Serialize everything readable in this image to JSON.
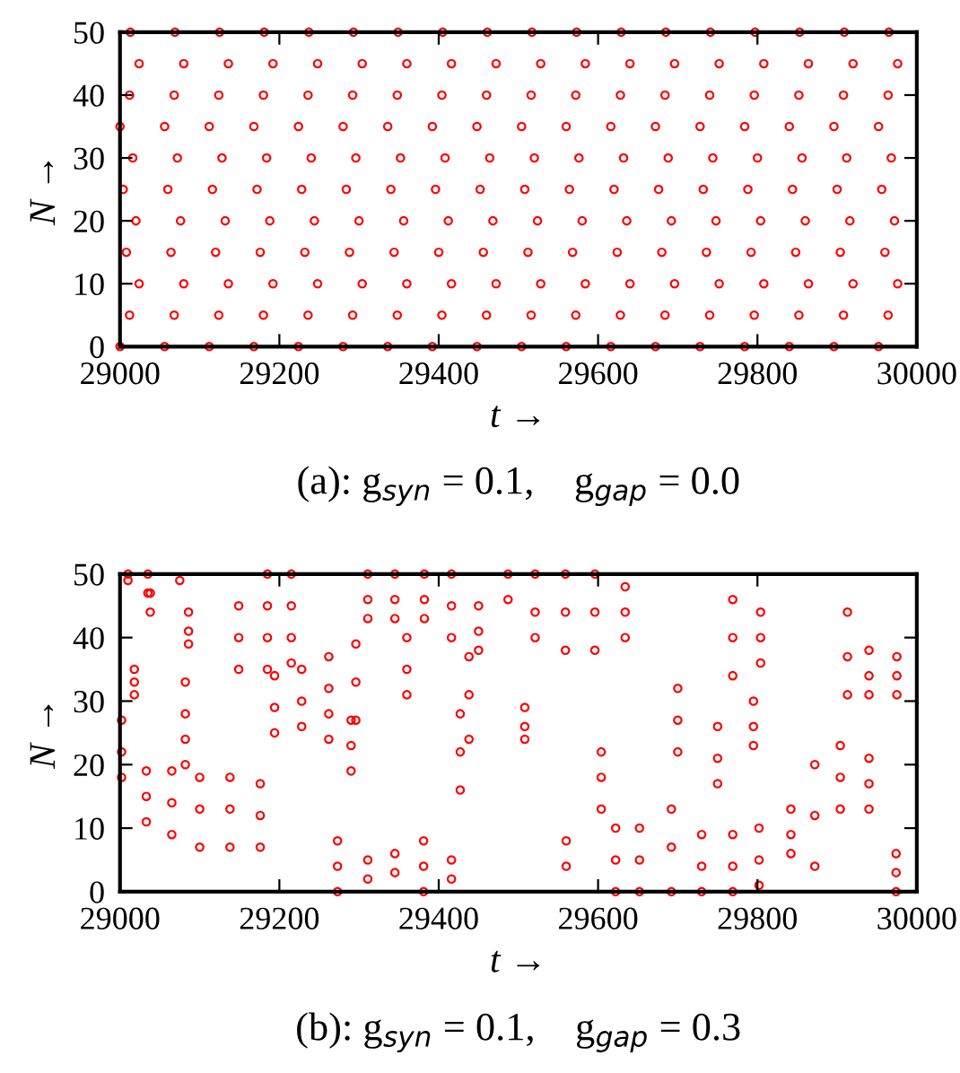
{
  "chart_data": [
    {
      "type": "scatter",
      "xlabel": "t →",
      "ylabel": "N →",
      "annotations": [
        "(a): g$_{syn}$ = 0.1,    g$_{gap}$ = 0.0"
      ],
      "xlim": [
        29000,
        30000
      ],
      "ylim": [
        0,
        50
      ],
      "xticks": [
        29000,
        29200,
        29400,
        29600,
        29800,
        30000
      ],
      "yticks": [
        0,
        10,
        20,
        30,
        40,
        50
      ],
      "marker": "circle",
      "series": [
        {
          "color": "#ff0000",
          "x": [
            29000,
            29056,
            29112,
            29168,
            29224,
            29280,
            29336,
            29392,
            29448,
            29504,
            29560,
            29616,
            29672,
            29728,
            29784,
            29840,
            29896,
            29952,
            29012,
            29068,
            29124,
            29180,
            29236,
            29292,
            29348,
            29404,
            29460,
            29516,
            29572,
            29628,
            29684,
            29740,
            29796,
            29852,
            29908,
            29964,
            29024,
            29080,
            29136,
            29192,
            29248,
            29304,
            29360,
            29416,
            29472,
            29528,
            29584,
            29640,
            29696,
            29752,
            29808,
            29864,
            29920,
            29976,
            29008,
            29064,
            29120,
            29176,
            29232,
            29288,
            29344,
            29400,
            29456,
            29512,
            29568,
            29624,
            29680,
            29736,
            29792,
            29848,
            29904,
            29960,
            29020,
            29076,
            29132,
            29188,
            29244,
            29300,
            29356,
            29412,
            29468,
            29524,
            29580,
            29636,
            29692,
            29748,
            29804,
            29860,
            29916,
            29972,
            29004,
            29060,
            29116,
            29172,
            29228,
            29284,
            29340,
            29396,
            29452,
            29508,
            29564,
            29620,
            29676,
            29732,
            29788,
            29844,
            29900,
            29956,
            29016,
            29072,
            29128,
            29184,
            29240,
            29296,
            29352,
            29408,
            29464,
            29520,
            29576,
            29632,
            29688,
            29744,
            29800,
            29856,
            29912,
            29968,
            29000,
            29056,
            29112,
            29168,
            29224,
            29280,
            29336,
            29392,
            29448,
            29504,
            29560,
            29616,
            29672,
            29728,
            29784,
            29840,
            29896,
            29952,
            29012,
            29068,
            29124,
            29180,
            29236,
            29292,
            29348,
            29404,
            29460,
            29516,
            29572,
            29628,
            29684,
            29740,
            29796,
            29852,
            29908,
            29964,
            29024,
            29080,
            29136,
            29192,
            29248,
            29304,
            29360,
            29416,
            29472,
            29528,
            29584,
            29640,
            29696,
            29752,
            29808,
            29864,
            29920,
            29976,
            29013,
            29069,
            29125,
            29181,
            29237,
            29293,
            29349,
            29405,
            29461,
            29517,
            29573,
            29629,
            29685,
            29741,
            29797,
            29853,
            29909,
            29965
          ],
          "values": [
            0,
            0,
            0,
            0,
            0,
            0,
            0,
            0,
            0,
            0,
            0,
            0,
            0,
            0,
            0,
            0,
            0,
            0,
            5,
            5,
            5,
            5,
            5,
            5,
            5,
            5,
            5,
            5,
            5,
            5,
            5,
            5,
            5,
            5,
            5,
            5,
            10,
            10,
            10,
            10,
            10,
            10,
            10,
            10,
            10,
            10,
            10,
            10,
            10,
            10,
            10,
            10,
            10,
            10,
            15,
            15,
            15,
            15,
            15,
            15,
            15,
            15,
            15,
            15,
            15,
            15,
            15,
            15,
            15,
            15,
            15,
            15,
            20,
            20,
            20,
            20,
            20,
            20,
            20,
            20,
            20,
            20,
            20,
            20,
            20,
            20,
            20,
            20,
            20,
            20,
            25,
            25,
            25,
            25,
            25,
            25,
            25,
            25,
            25,
            25,
            25,
            25,
            25,
            25,
            25,
            25,
            25,
            25,
            30,
            30,
            30,
            30,
            30,
            30,
            30,
            30,
            30,
            30,
            30,
            30,
            30,
            30,
            30,
            30,
            30,
            30,
            35,
            35,
            35,
            35,
            35,
            35,
            35,
            35,
            35,
            35,
            35,
            35,
            35,
            35,
            35,
            35,
            35,
            35,
            40,
            40,
            40,
            40,
            40,
            40,
            40,
            40,
            40,
            40,
            40,
            40,
            40,
            40,
            40,
            40,
            40,
            40,
            45,
            45,
            45,
            45,
            45,
            45,
            45,
            45,
            45,
            45,
            45,
            45,
            45,
            45,
            45,
            45,
            45,
            45,
            50,
            50,
            50,
            50,
            50,
            50,
            50,
            50,
            50,
            50,
            50,
            50,
            50,
            50,
            50,
            50,
            50,
            50
          ]
        }
      ]
    },
    {
      "type": "scatter",
      "xlabel": "t →",
      "ylabel": "N →",
      "annotations": [
        "(b): g$_{syn}$ = 0.1,    g$_{gap}$ = 0.3"
      ],
      "xlim": [
        29000,
        30000
      ],
      "ylim": [
        0,
        50
      ],
      "xticks": [
        29000,
        29200,
        29400,
        29600,
        29800,
        30000
      ],
      "yticks": [
        0,
        10,
        20,
        30,
        40,
        50
      ],
      "marker": "circle",
      "series": [
        {
          "color": "#ff0000",
          "x": [
            29185,
            29185,
            29185,
            29185,
            29215,
            29215,
            29215,
            29215,
            29149,
            29149,
            29149,
            29082,
            29082,
            29082,
            29082,
            29194,
            29194,
            29194,
            29228,
            29228,
            29228,
            29262,
            29262,
            29262,
            29262,
            29296,
            29296,
            29296,
            29311,
            29311,
            29311,
            29345,
            29345,
            29345,
            29382,
            29382,
            29382,
            29416,
            29416,
            29416,
            29360,
            29360,
            29360,
            29033,
            29033,
            29033,
            29065,
            29065,
            29065,
            29100,
            29100,
            29100,
            29138,
            29138,
            29138,
            29176,
            29176,
            29176,
            29290,
            29290,
            29290,
            29273,
            29273,
            29273,
            29311,
            29311,
            29345,
            29345,
            29381,
            29381,
            29381,
            29416,
            29416,
            29427,
            29427,
            29427,
            29438,
            29438,
            29438,
            29450,
            29450,
            29450,
            29010,
            29010,
            29035,
            29035,
            29075,
            29487,
            29487,
            29521,
            29521,
            29521,
            29559,
            29559,
            29559,
            29596,
            29596,
            29596,
            29634,
            29634,
            29634,
            29769,
            29769,
            29769,
            29804,
            29804,
            29804,
            29604,
            29604,
            29604,
            29652,
            29652,
            29652,
            29692,
            29692,
            29692,
            29730,
            29730,
            29730,
            29769,
            29769,
            29769,
            29802,
            29802,
            29802,
            29842,
            29842,
            29842,
            29872,
            29872,
            29872,
            29904,
            29904,
            29904,
            29913,
            29913,
            29913,
            29940,
            29940,
            29940,
            29975,
            29975,
            29975,
            29750,
            29750,
            29750,
            29795,
            29795,
            29795,
            29508,
            29508,
            29508,
            29700,
            29700,
            29700,
            29940,
            29940,
            29940,
            29018,
            29018,
            29018,
            29038,
            29038,
            29086,
            29086,
            29086,
            29560,
            29560,
            29622,
            29622,
            29622,
            29974,
            29974,
            29974,
            29002,
            29002,
            29002
          ],
          "values": [
            50,
            45,
            40,
            35,
            50,
            45,
            40,
            36,
            45,
            40,
            35,
            33,
            28,
            24,
            20,
            34,
            29,
            25,
            35,
            30,
            26,
            37,
            32,
            28,
            24,
            39,
            33,
            27,
            50,
            46,
            43,
            50,
            46,
            43,
            50,
            46,
            43,
            50,
            45,
            40,
            40,
            35,
            31,
            19,
            15,
            11,
            19,
            14,
            9,
            18,
            13,
            7,
            18,
            13,
            7,
            17,
            12,
            7,
            27,
            23,
            19,
            8,
            4,
            0,
            5,
            2,
            6,
            3,
            8,
            4,
            0,
            5,
            2,
            28,
            22,
            16,
            37,
            31,
            24,
            45,
            41,
            38,
            50,
            49,
            50,
            47,
            49,
            50,
            46,
            50,
            44,
            40,
            50,
            44,
            38,
            50,
            44,
            38,
            48,
            44,
            40,
            46,
            40,
            34,
            44,
            40,
            36,
            22,
            18,
            13,
            10,
            5,
            0,
            13,
            7,
            0,
            9,
            4,
            0,
            9,
            4,
            0,
            10,
            5,
            1,
            13,
            9,
            6,
            20,
            12,
            4,
            23,
            18,
            13,
            44,
            37,
            31,
            38,
            34,
            31,
            37,
            34,
            31,
            26,
            21,
            17,
            30,
            26,
            23,
            29,
            26,
            24,
            32,
            27,
            22,
            21,
            17,
            13,
            35,
            33,
            31,
            47,
            44,
            44,
            41,
            39,
            8,
            4,
            10,
            5,
            0,
            6,
            3,
            0,
            27,
            22,
            18
          ]
        }
      ]
    }
  ]
}
